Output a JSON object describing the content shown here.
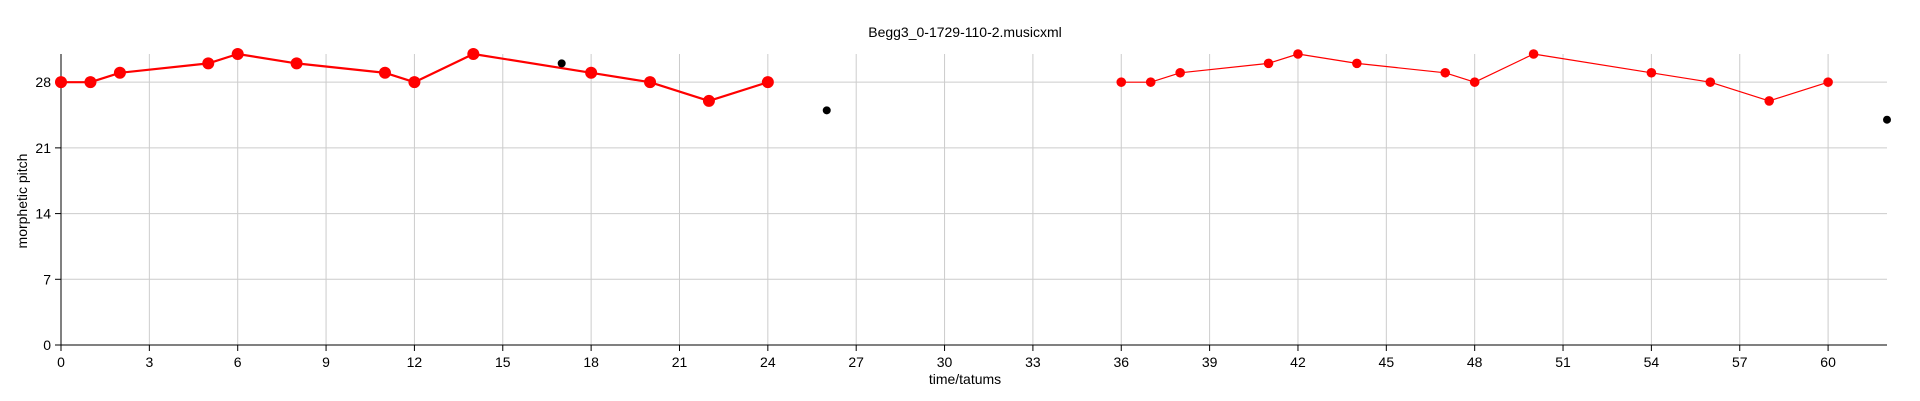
{
  "chart_data": {
    "type": "scatter",
    "title": "Begg3_0-1729-110-2.musicxml",
    "xlabel": "time/tatums",
    "ylabel": "morphetic pitch",
    "xlim": [
      0,
      62
    ],
    "ylim": [
      0,
      31
    ],
    "x_ticks": [
      0,
      3,
      6,
      9,
      12,
      15,
      18,
      21,
      24,
      27,
      30,
      33,
      36,
      39,
      42,
      45,
      48,
      51,
      54,
      57,
      60
    ],
    "y_ticks": [
      0,
      7,
      14,
      21,
      28
    ],
    "grid": true,
    "series": [
      {
        "color": "#ff0000",
        "style": "line-markers-thick",
        "points": [
          [
            0,
            28
          ],
          [
            1,
            28
          ],
          [
            2,
            29
          ],
          [
            5,
            30
          ],
          [
            6,
            31
          ],
          [
            8,
            30
          ],
          [
            11,
            29
          ],
          [
            12,
            28
          ],
          [
            14,
            31
          ],
          [
            18,
            29
          ],
          [
            20,
            28
          ],
          [
            22,
            26
          ],
          [
            24,
            28
          ]
        ]
      },
      {
        "color": "#ff0000",
        "style": "line-markers-thin",
        "points": [
          [
            36,
            28
          ],
          [
            37,
            28
          ],
          [
            38,
            29
          ],
          [
            41,
            30
          ],
          [
            42,
            31
          ],
          [
            44,
            30
          ],
          [
            47,
            29
          ],
          [
            48,
            28
          ],
          [
            50,
            31
          ],
          [
            54,
            29
          ],
          [
            56,
            28
          ],
          [
            58,
            26
          ],
          [
            60,
            28
          ]
        ]
      },
      {
        "color": "#000000",
        "style": "markers",
        "points": [
          [
            17,
            30
          ],
          [
            26,
            25
          ],
          [
            62,
            24
          ]
        ]
      }
    ]
  }
}
